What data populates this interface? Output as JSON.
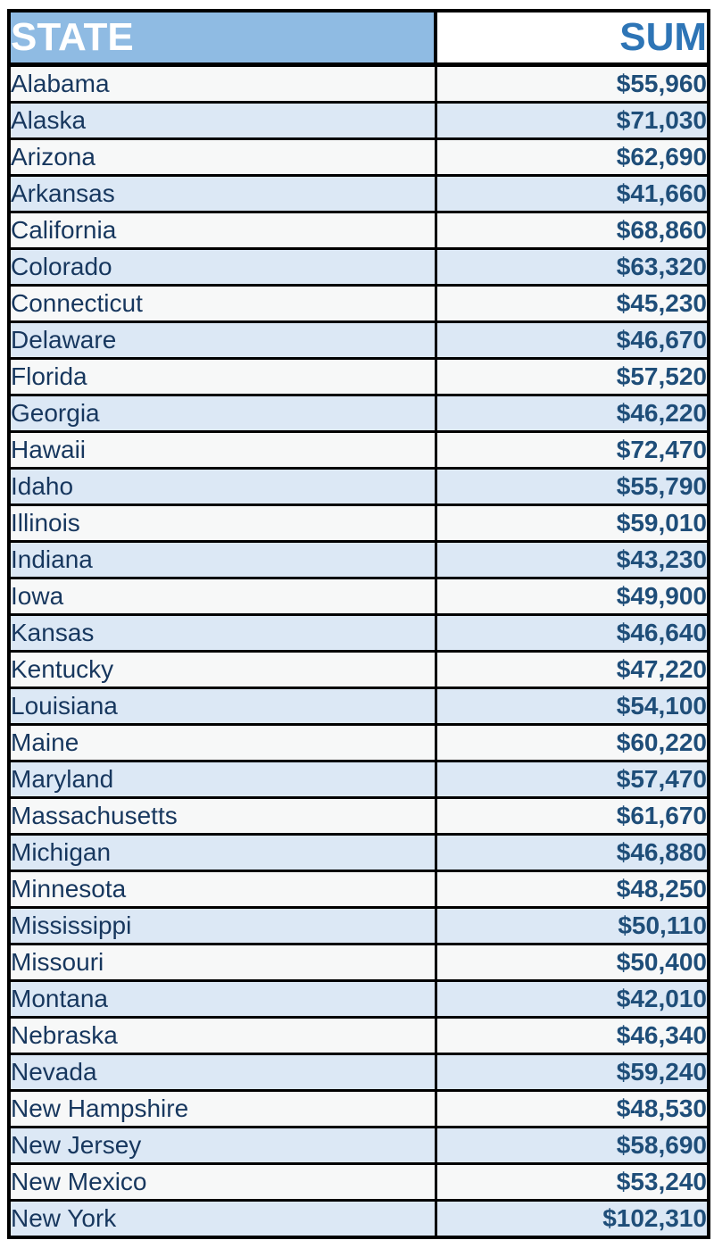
{
  "table": {
    "header": {
      "state": "STATE",
      "sum": "SUM"
    },
    "rows": [
      {
        "state": "Alabama",
        "sum": "$55,960"
      },
      {
        "state": "Alaska",
        "sum": "$71,030"
      },
      {
        "state": "Arizona",
        "sum": "$62,690"
      },
      {
        "state": "Arkansas",
        "sum": "$41,660"
      },
      {
        "state": "California",
        "sum": "$68,860"
      },
      {
        "state": "Colorado",
        "sum": "$63,320"
      },
      {
        "state": "Connecticut",
        "sum": "$45,230"
      },
      {
        "state": "Delaware",
        "sum": "$46,670"
      },
      {
        "state": "Florida",
        "sum": "$57,520"
      },
      {
        "state": "Georgia",
        "sum": "$46,220"
      },
      {
        "state": "Hawaii",
        "sum": "$72,470"
      },
      {
        "state": "Idaho",
        "sum": "$55,790"
      },
      {
        "state": "Illinois",
        "sum": "$59,010"
      },
      {
        "state": "Indiana",
        "sum": "$43,230"
      },
      {
        "state": "Iowa",
        "sum": "$49,900"
      },
      {
        "state": "Kansas",
        "sum": "$46,640"
      },
      {
        "state": "Kentucky",
        "sum": "$47,220"
      },
      {
        "state": "Louisiana",
        "sum": "$54,100"
      },
      {
        "state": "Maine",
        "sum": "$60,220"
      },
      {
        "state": "Maryland",
        "sum": "$57,470"
      },
      {
        "state": "Massachusetts",
        "sum": "$61,670"
      },
      {
        "state": "Michigan",
        "sum": "$46,880"
      },
      {
        "state": "Minnesota",
        "sum": "$48,250"
      },
      {
        "state": "Mississippi",
        "sum": "$50,110"
      },
      {
        "state": "Missouri",
        "sum": "$50,400"
      },
      {
        "state": "Montana",
        "sum": "$42,010"
      },
      {
        "state": "Nebraska",
        "sum": "$46,340"
      },
      {
        "state": "Nevada",
        "sum": "$59,240"
      },
      {
        "state": "New Hampshire",
        "sum": "$48,530"
      },
      {
        "state": "New Jersey",
        "sum": "$58,690"
      },
      {
        "state": "New Mexico",
        "sum": "$53,240"
      },
      {
        "state": "New York",
        "sum": "$102,310"
      }
    ]
  },
  "colors": {
    "header_state_bg": "#8fbbe3",
    "header_state_text": "#ffffff",
    "header_sum_bg": "#ffffff",
    "header_sum_text": "#2e75b6",
    "row_band_gray": "#f7f8f8",
    "row_band_blue": "#dce8f5",
    "state_text": "#17375e",
    "value_text": "#1f4e79",
    "border": "#000000"
  },
  "chart_data": {
    "type": "table",
    "title": "",
    "columns": [
      "STATE",
      "SUM"
    ],
    "categories": [
      "Alabama",
      "Alaska",
      "Arizona",
      "Arkansas",
      "California",
      "Colorado",
      "Connecticut",
      "Delaware",
      "Florida",
      "Georgia",
      "Hawaii",
      "Idaho",
      "Illinois",
      "Indiana",
      "Iowa",
      "Kansas",
      "Kentucky",
      "Louisiana",
      "Maine",
      "Maryland",
      "Massachusetts",
      "Michigan",
      "Minnesota",
      "Mississippi",
      "Missouri",
      "Montana",
      "Nebraska",
      "Nevada",
      "New Hampshire",
      "New Jersey",
      "New Mexico",
      "New York"
    ],
    "values": [
      55960,
      71030,
      62690,
      41660,
      68860,
      63320,
      45230,
      46670,
      57520,
      46220,
      72470,
      55790,
      59010,
      43230,
      49900,
      46640,
      47220,
      54100,
      60220,
      57470,
      61670,
      46880,
      48250,
      50110,
      50400,
      42010,
      46340,
      59240,
      48530,
      58690,
      53240,
      102310
    ],
    "value_format": "$#,##0",
    "layout": "banded rows alternating gray/light-blue, black grid borders, values right-aligned bold"
  }
}
